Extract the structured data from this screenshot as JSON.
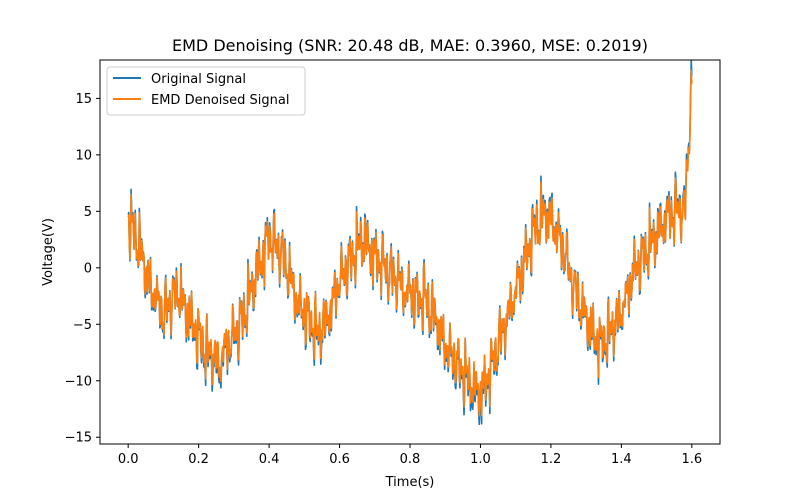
{
  "chart_data": {
    "type": "line",
    "title": "EMD Denoising (SNR: 20.48 dB, MAE: 0.3960, MSE: 0.2019)",
    "xlabel": "Time(s)",
    "ylabel": "Voltage(V)",
    "xlim": [
      -0.08,
      1.68
    ],
    "ylim": [
      -15.6,
      18.4
    ],
    "x_ticks": [
      0.0,
      0.2,
      0.4,
      0.6,
      0.8,
      1.0,
      1.2,
      1.4,
      1.6
    ],
    "x_tick_labels": [
      "0.0",
      "0.2",
      "0.4",
      "0.6",
      "0.8",
      "1.0",
      "1.2",
      "1.4",
      "1.6"
    ],
    "y_ticks": [
      -15,
      -10,
      -5,
      0,
      5,
      10,
      15
    ],
    "y_tick_labels": [
      "−15",
      "−10",
      "−5",
      "0",
      "5",
      "10",
      "15"
    ],
    "grid": false,
    "legend_position": "upper-left",
    "series": [
      {
        "name": "Original Signal",
        "color": "#1f77b4",
        "x": [
          0.0,
          0.02,
          0.04,
          0.06,
          0.08,
          0.1,
          0.12,
          0.14,
          0.16,
          0.18,
          0.2,
          0.22,
          0.24,
          0.26,
          0.28,
          0.3,
          0.32,
          0.34,
          0.36,
          0.38,
          0.4,
          0.42,
          0.44,
          0.46,
          0.48,
          0.5,
          0.52,
          0.54,
          0.56,
          0.58,
          0.6,
          0.62,
          0.64,
          0.66,
          0.68,
          0.7,
          0.72,
          0.74,
          0.76,
          0.78,
          0.8,
          0.82,
          0.84,
          0.86,
          0.88,
          0.9,
          0.92,
          0.94,
          0.96,
          0.98,
          1.0,
          1.02,
          1.04,
          1.06,
          1.08,
          1.1,
          1.12,
          1.14,
          1.16,
          1.18,
          1.2,
          1.22,
          1.24,
          1.26,
          1.28,
          1.3,
          1.32,
          1.34,
          1.36,
          1.38,
          1.4,
          1.42,
          1.44,
          1.46,
          1.48,
          1.5,
          1.52,
          1.54,
          1.56,
          1.58,
          1.6
        ],
        "y": [
          4.5,
          3.0,
          1.0,
          -1.5,
          -3.0,
          -4.0,
          -3.0,
          -2.0,
          -3.5,
          -5.0,
          -6.0,
          -7.5,
          -8.0,
          -9.0,
          -7.0,
          -6.0,
          -5.0,
          -3.0,
          -1.0,
          1.0,
          3.0,
          2.0,
          1.0,
          -1.0,
          -3.0,
          -4.0,
          -5.0,
          -6.0,
          -5.0,
          -3.0,
          -1.0,
          0.0,
          1.0,
          2.5,
          2.0,
          1.0,
          0.5,
          -0.5,
          -1.0,
          -2.0,
          -2.0,
          -3.0,
          -2.5,
          -4.0,
          -5.0,
          -7.0,
          -8.0,
          -9.0,
          -10.0,
          -11.0,
          -11.5,
          -10.0,
          -8.0,
          -6.0,
          -4.0,
          -2.0,
          0.0,
          2.0,
          4.0,
          5.0,
          4.5,
          3.0,
          1.0,
          -1.0,
          -3.0,
          -4.5,
          -6.0,
          -7.0,
          -6.0,
          -5.0,
          -4.0,
          -2.0,
          0.0,
          1.0,
          2.0,
          3.0,
          4.0,
          5.0,
          5.5,
          5.0,
          17.0
        ]
      },
      {
        "name": "EMD Denoised Signal",
        "color": "#ff7f0e",
        "x": [
          0.0,
          0.02,
          0.04,
          0.06,
          0.08,
          0.1,
          0.12,
          0.14,
          0.16,
          0.18,
          0.2,
          0.22,
          0.24,
          0.26,
          0.28,
          0.3,
          0.32,
          0.34,
          0.36,
          0.38,
          0.4,
          0.42,
          0.44,
          0.46,
          0.48,
          0.5,
          0.52,
          0.54,
          0.56,
          0.58,
          0.6,
          0.62,
          0.64,
          0.66,
          0.68,
          0.7,
          0.72,
          0.74,
          0.76,
          0.78,
          0.8,
          0.82,
          0.84,
          0.86,
          0.88,
          0.9,
          0.92,
          0.94,
          0.96,
          0.98,
          1.0,
          1.02,
          1.04,
          1.06,
          1.08,
          1.1,
          1.12,
          1.14,
          1.16,
          1.18,
          1.2,
          1.22,
          1.24,
          1.26,
          1.28,
          1.3,
          1.32,
          1.34,
          1.36,
          1.38,
          1.4,
          1.42,
          1.44,
          1.46,
          1.48,
          1.5,
          1.52,
          1.54,
          1.56,
          1.58,
          1.6
        ],
        "y": [
          4.3,
          2.9,
          1.0,
          -1.4,
          -2.9,
          -3.9,
          -3.0,
          -2.1,
          -3.4,
          -4.8,
          -5.8,
          -7.2,
          -7.7,
          -8.6,
          -6.8,
          -5.8,
          -4.9,
          -3.0,
          -1.0,
          1.0,
          2.8,
          2.0,
          1.0,
          -1.0,
          -2.9,
          -3.9,
          -4.8,
          -5.7,
          -4.9,
          -3.0,
          -1.0,
          0.0,
          1.0,
          2.3,
          2.0,
          1.0,
          0.5,
          -0.5,
          -1.0,
          -2.0,
          -2.0,
          -2.9,
          -2.5,
          -3.9,
          -4.8,
          -6.8,
          -7.7,
          -8.7,
          -9.6,
          -10.5,
          -11.0,
          -9.7,
          -7.8,
          -5.9,
          -3.9,
          -2.0,
          0.0,
          2.0,
          3.8,
          4.8,
          4.3,
          2.9,
          1.0,
          -1.0,
          -2.9,
          -4.4,
          -5.8,
          -6.7,
          -5.9,
          -4.9,
          -3.9,
          -2.0,
          0.0,
          1.0,
          2.0,
          2.9,
          3.9,
          4.8,
          5.3,
          4.8,
          16.3
        ]
      }
    ]
  }
}
